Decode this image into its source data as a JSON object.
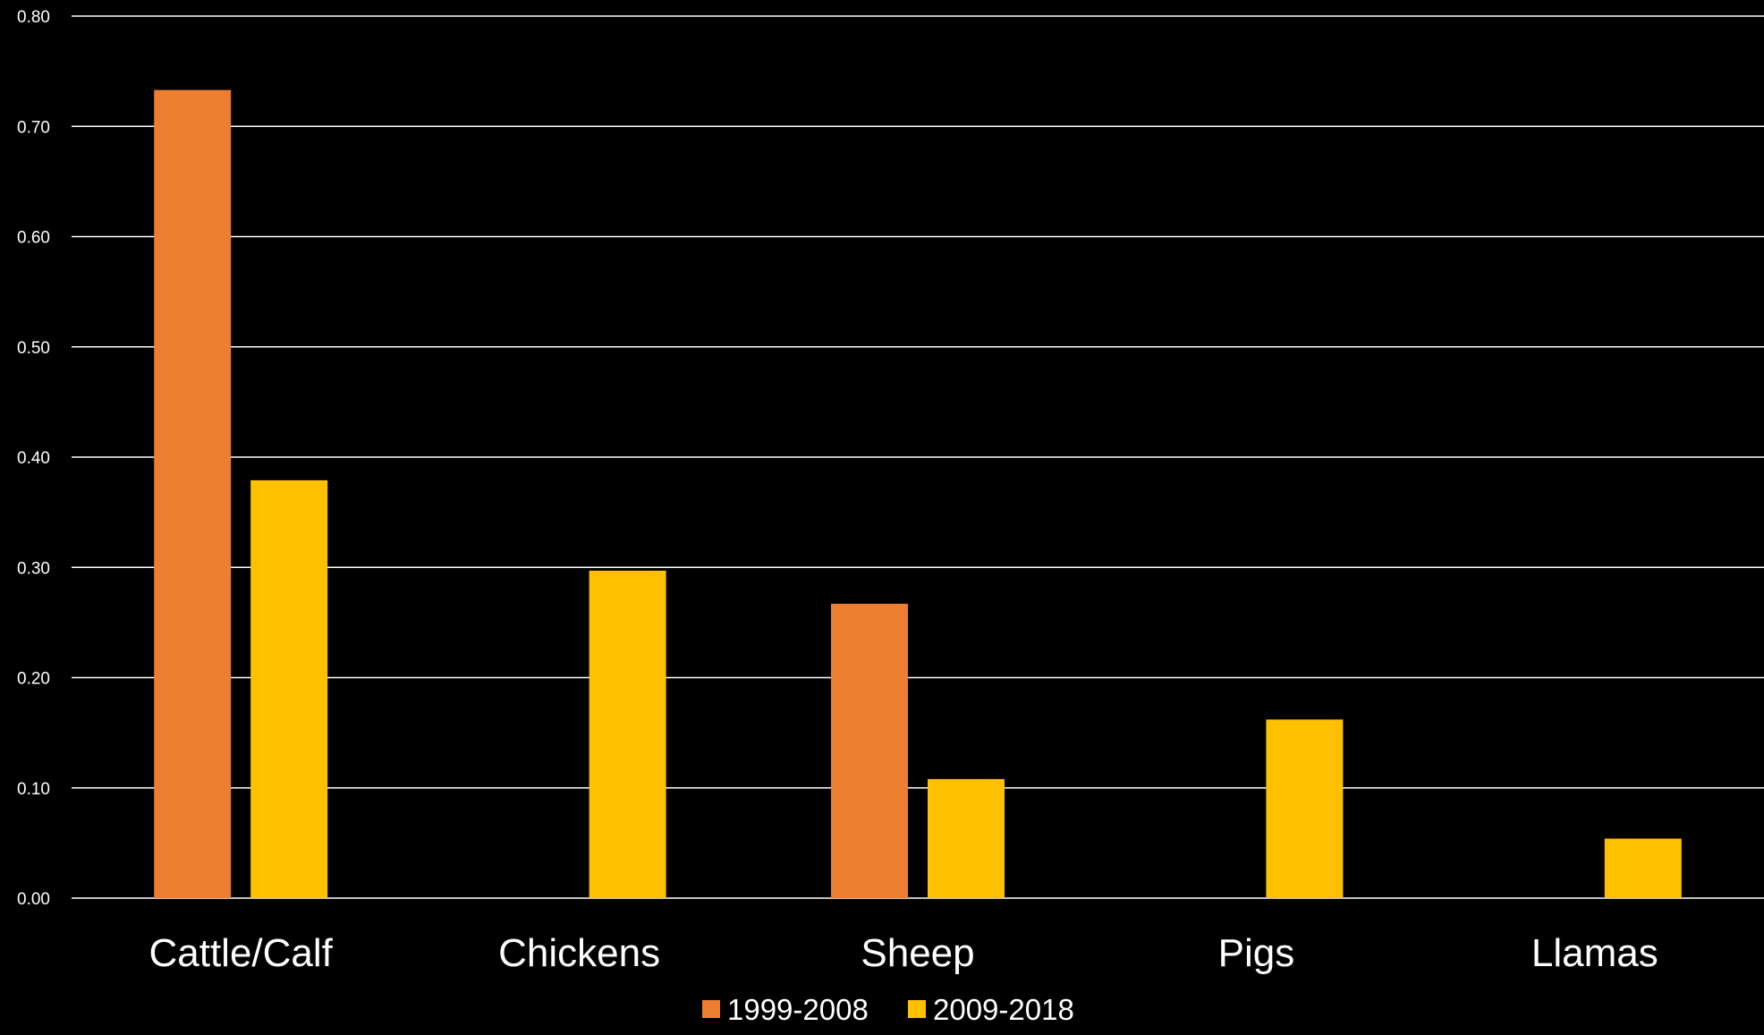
{
  "chart_data": {
    "type": "bar",
    "title": "",
    "xlabel": "",
    "ylabel": "",
    "categories": [
      "Cattle/Calf",
      "Chickens",
      "Sheep",
      "Pigs",
      "Llamas"
    ],
    "series": [
      {
        "name": "1999-2008",
        "color": "#ED7D31",
        "values": [
          0.733,
          0,
          0.267,
          0,
          0
        ]
      },
      {
        "name": "2009-2018",
        "color": "#FFC000",
        "values": [
          0.379,
          0.297,
          0.108,
          0.162,
          0.054
        ]
      }
    ],
    "ylim": [
      0,
      0.8
    ],
    "yticks": [
      "0.00",
      "0.10",
      "0.20",
      "0.30",
      "0.40",
      "0.50",
      "0.60",
      "0.70",
      "0.80"
    ],
    "grid": true,
    "legend_position": "bottom",
    "background": "#000000",
    "gridline_color": "#ffffff"
  }
}
